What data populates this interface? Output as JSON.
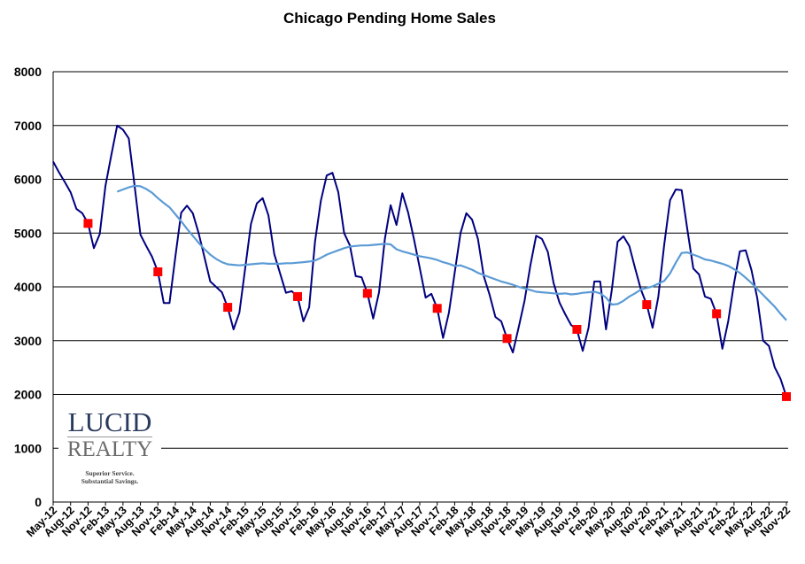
{
  "chart_data": {
    "type": "line",
    "title": "Chicago Pending Home Sales",
    "xlabel": "",
    "ylabel": "",
    "ylim": [
      0,
      8000
    ],
    "yticks": [
      0,
      1000,
      2000,
      3000,
      4000,
      5000,
      6000,
      7000,
      8000
    ],
    "grid": "horizontal",
    "legend": "none",
    "x": [
      "May-12",
      "Jun-12",
      "Jul-12",
      "Aug-12",
      "Sep-12",
      "Oct-12",
      "Nov-12",
      "Dec-12",
      "Jan-13",
      "Feb-13",
      "Mar-13",
      "Apr-13",
      "May-13",
      "Jun-13",
      "Jul-13",
      "Aug-13",
      "Sep-13",
      "Oct-13",
      "Nov-13",
      "Dec-13",
      "Jan-14",
      "Feb-14",
      "Mar-14",
      "Apr-14",
      "May-14",
      "Jun-14",
      "Jul-14",
      "Aug-14",
      "Sep-14",
      "Oct-14",
      "Nov-14",
      "Dec-14",
      "Jan-15",
      "Feb-15",
      "Mar-15",
      "Apr-15",
      "May-15",
      "Jun-15",
      "Jul-15",
      "Aug-15",
      "Sep-15",
      "Oct-15",
      "Nov-15",
      "Dec-15",
      "Jan-16",
      "Feb-16",
      "Mar-16",
      "Apr-16",
      "May-16",
      "Jun-16",
      "Jul-16",
      "Aug-16",
      "Sep-16",
      "Oct-16",
      "Nov-16",
      "Dec-16",
      "Jan-17",
      "Feb-17",
      "Mar-17",
      "Apr-17",
      "May-17",
      "Jun-17",
      "Jul-17",
      "Aug-17",
      "Sep-17",
      "Oct-17",
      "Nov-17",
      "Dec-17",
      "Jan-18",
      "Feb-18",
      "Mar-18",
      "Apr-18",
      "May-18",
      "Jun-18",
      "Jul-18",
      "Aug-18",
      "Sep-18",
      "Oct-18",
      "Nov-18",
      "Dec-18",
      "Jan-19",
      "Feb-19",
      "Mar-19",
      "Apr-19",
      "May-19",
      "Jun-19",
      "Jul-19",
      "Aug-19",
      "Sep-19",
      "Oct-19",
      "Nov-19",
      "Dec-19",
      "Jan-20",
      "Feb-20",
      "Mar-20",
      "Apr-20",
      "May-20",
      "Jun-20",
      "Jul-20",
      "Aug-20",
      "Sep-20",
      "Oct-20",
      "Nov-20",
      "Dec-20",
      "Jan-21",
      "Feb-21",
      "Mar-21",
      "Apr-21",
      "May-21",
      "Jun-21",
      "Jul-21",
      "Aug-21",
      "Sep-21",
      "Oct-21",
      "Nov-21",
      "Dec-21",
      "Jan-22",
      "Feb-22",
      "Mar-22",
      "Apr-22",
      "May-22",
      "Jun-22",
      "Jul-22",
      "Aug-22",
      "Sep-22",
      "Oct-22",
      "Nov-22"
    ],
    "series": [
      {
        "color": "#000080",
        "values": [
          6330,
          6130,
          5950,
          5760,
          5450,
          5370,
          5180,
          4720,
          4980,
          5880,
          6450,
          7000,
          6920,
          6760,
          5880,
          4970,
          4760,
          4560,
          4280,
          3700,
          3700,
          4560,
          5380,
          5510,
          5370,
          5000,
          4550,
          4100,
          4000,
          3900,
          3620,
          3210,
          3520,
          4350,
          5170,
          5550,
          5650,
          5330,
          4610,
          4250,
          3890,
          3920,
          3820,
          3360,
          3620,
          4840,
          5600,
          6070,
          6120,
          5760,
          5000,
          4770,
          4200,
          4180,
          3880,
          3410,
          3900,
          4890,
          5520,
          5150,
          5740,
          5380,
          4890,
          4350,
          3800,
          3870,
          3600,
          3050,
          3520,
          4260,
          5000,
          5370,
          5250,
          4890,
          4200,
          3850,
          3440,
          3360,
          3040,
          2780,
          3250,
          3740,
          4400,
          4950,
          4890,
          4650,
          4070,
          3710,
          3490,
          3290,
          3210,
          2810,
          3240,
          4100,
          4100,
          3210,
          3950,
          4840,
          4940,
          4760,
          4350,
          3950,
          3670,
          3240,
          3820,
          4780,
          5610,
          5810,
          5800,
          5050,
          4340,
          4230,
          3820,
          3780,
          3500,
          2850,
          3360,
          4070,
          4660,
          4680,
          4310,
          3790,
          3000,
          2900,
          2500,
          2290,
          1960
        ]
      },
      {
        "color": "#5b9bd5",
        "values": [
          null,
          null,
          null,
          null,
          null,
          null,
          null,
          null,
          null,
          null,
          null,
          5770,
          5810,
          5850,
          5880,
          5870,
          5820,
          5750,
          5650,
          5560,
          5480,
          5350,
          5220,
          5080,
          4950,
          4820,
          4700,
          4600,
          4520,
          4460,
          4420,
          4410,
          4400,
          4410,
          4420,
          4430,
          4440,
          4430,
          4430,
          4430,
          4440,
          4440,
          4450,
          4460,
          4470,
          4490,
          4540,
          4600,
          4640,
          4680,
          4720,
          4750,
          4760,
          4770,
          4770,
          4780,
          4790,
          4800,
          4790,
          4700,
          4660,
          4630,
          4600,
          4570,
          4550,
          4530,
          4500,
          4460,
          4430,
          4390,
          4400,
          4360,
          4320,
          4260,
          4220,
          4180,
          4140,
          4100,
          4070,
          4040,
          4000,
          3970,
          3940,
          3910,
          3900,
          3890,
          3880,
          3870,
          3880,
          3860,
          3870,
          3890,
          3900,
          3910,
          3880,
          3800,
          3670,
          3680,
          3740,
          3820,
          3880,
          3950,
          3980,
          4010,
          4060,
          4110,
          4250,
          4450,
          4630,
          4640,
          4600,
          4560,
          4510,
          4490,
          4460,
          4430,
          4390,
          4330,
          4260,
          4170,
          4070,
          3960,
          3850,
          3740,
          3630,
          3500,
          3380
        ]
      }
    ],
    "markers": {
      "color": "#ff0000",
      "shape": "square",
      "x": [
        "Nov-12",
        "Nov-13",
        "Nov-14",
        "Nov-15",
        "Nov-16",
        "Nov-17",
        "Nov-18",
        "Nov-19",
        "Nov-20",
        "Nov-21",
        "Nov-22"
      ],
      "values": [
        5180,
        4280,
        3620,
        3820,
        3880,
        3600,
        3040,
        3210,
        3670,
        3500,
        1960
      ]
    }
  },
  "logo": {
    "line1": "LUCID",
    "line2": "REALTY",
    "tagline1": "Superior Service.",
    "tagline2": "Substantial Savings."
  }
}
